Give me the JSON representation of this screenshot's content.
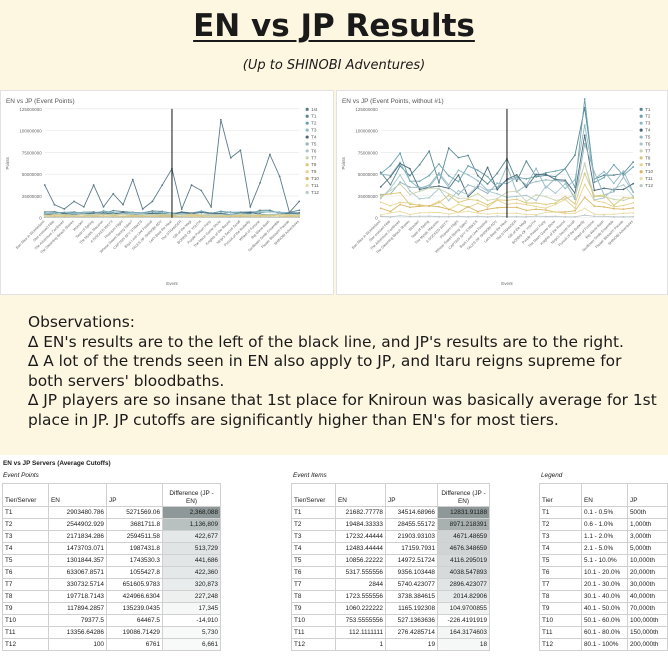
{
  "page": {
    "title": "EN vs JP Results",
    "subtitle": "(Up to SHINOBI Adventures)"
  },
  "charts": {
    "left": {
      "title": "EN vs JP (Event Points)",
      "ylabel": "Points",
      "xlabel": "Event",
      "yticks": [
        "125000000",
        "100000000",
        "75000000",
        "50000000",
        "25000000",
        "0"
      ],
      "legend": [
        "1st",
        "T1",
        "T2",
        "T3",
        "T4",
        "T5",
        "T6",
        "T7",
        "T8",
        "T9",
        "T10",
        "T11",
        "T12"
      ]
    },
    "right": {
      "title": "EN vs JP (Event Points, without #1)",
      "ylabel": "Points",
      "xlabel": "Event",
      "yticks": [
        "125000000",
        "100000000",
        "75000000",
        "50000000",
        "25000000",
        "0"
      ],
      "legend": [
        "T1",
        "T2",
        "T3",
        "T4",
        "T5",
        "T6",
        "T7",
        "T8",
        "T9",
        "T10",
        "T11",
        "T12"
      ]
    },
    "xlabels": [
      "Bon Alice in Wonderland",
      "Star-crossed Fête",
      "The Adventure Continues",
      "The Gleaming Beach Shores",
      "Wonder!",
      "Taste of Spring",
      "The Mystic Macaron",
      "A DOCKED WAY?!",
      "Phantom Flight",
      "Whose Sweet Spring Tales?",
      "CAPTAIN SPY STRIKES",
      "Boys Love Live Festival",
      "TALES OF SHINOBI ADV",
      "Let's Beat the Heat",
      "The STRANGER",
      "Gift of the Magi",
      "BONDS OF YOUTH",
      "Purple Poison Party",
      "The Moon Game Show",
      "Knights of the Round",
      "Ninja's Secret Scroll",
      "Pursuit of the Butterfly",
      "Wheel of Fortune",
      "Big Wave Bash",
      "Sunflower Smile Ensemble",
      "Flower Blossom Parade",
      "SHINOBI Adventures"
    ],
    "series_colors": [
      "#5a7a88",
      "#56868f",
      "#6ba2b0",
      "#8fbac4",
      "#4b6878",
      "#93b6c0",
      "#a8c6cc",
      "#c8d4b0",
      "#dac77a",
      "#e6d38f",
      "#d9b763",
      "#e9dca4",
      "#bcc8ca"
    ],
    "divider_color": "#111111"
  },
  "observations": {
    "heading": "Observations:",
    "lines": [
      "∆ EN's results are to the left of the black line, and JP's results are to the right.",
      "∆ A lot of the trends seen in EN also apply to JP, and Itaru reigns supreme for both servers' bloodbaths.",
      "∆ JP players are so insane that 1st place for Kniroun was basically average for 1st place in JP. JP cutoffs are significantly higher than EN's for most tiers."
    ]
  },
  "tables": {
    "header": "EN vs JP Servers (Average Cutoffs)",
    "event_points": {
      "subtitle": "Event Points",
      "columns": [
        "Tier/Server",
        "EN",
        "JP",
        "Difference (JP - EN)"
      ],
      "rows": [
        [
          "T1",
          "2903480.786",
          "5271569.06",
          "2,368,088"
        ],
        [
          "T2",
          "2544902.929",
          "3681711.8",
          "1,136,809"
        ],
        [
          "T3",
          "2171834.286",
          "2594511.58",
          "422,677"
        ],
        [
          "T4",
          "1473703.071",
          "1987431.8",
          "513,729"
        ],
        [
          "T5",
          "1301844.357",
          "1743530.3",
          "441,686"
        ],
        [
          "T6",
          "633067.8571",
          "1055427.8",
          "422,360"
        ],
        [
          "T7",
          "330732.5714",
          "651605.9783",
          "320,873"
        ],
        [
          "T8",
          "197718.7143",
          "424966.6304",
          "227,248"
        ],
        [
          "T9",
          "117894.2857",
          "135239.0435",
          "17,345"
        ],
        [
          "T10",
          "79377.5",
          "64467.5",
          "-14,910"
        ],
        [
          "T11",
          "13356.64286",
          "19086.71429",
          "5,730"
        ],
        [
          "T12",
          "100",
          "6761",
          "6,661"
        ]
      ],
      "diff_shades": [
        "#8e9898",
        "#b8c0c0",
        "#e4e8e8",
        "#e0e4e4",
        "#e2e6e6",
        "#e4e8e8",
        "#e8ecec",
        "#eef0f0",
        "#f6f8f8",
        "#ffffff",
        "#f8f9f9",
        "#f8f9f9"
      ]
    },
    "event_items": {
      "subtitle": "Event Items",
      "columns": [
        "Tier/Server",
        "EN",
        "JP",
        "Difference (JP - EN)"
      ],
      "rows": [
        [
          "T1",
          "21682.77778",
          "34514.68966",
          "12831.91188"
        ],
        [
          "T2",
          "19484.33333",
          "28455.55172",
          "8971.218391"
        ],
        [
          "T3",
          "17232.44444",
          "21903.93103",
          "4671.48659"
        ],
        [
          "T4",
          "12483.44444",
          "17159.7931",
          "4676.348659"
        ],
        [
          "T5",
          "10856.22222",
          "14972.51724",
          "4116.295019"
        ],
        [
          "T6",
          "5317.555556",
          "9356.103448",
          "4038.547893"
        ],
        [
          "T7",
          "2844",
          "5740.423077",
          "2896.423077"
        ],
        [
          "T8",
          "1723.555556",
          "3738.384615",
          "2014.82906"
        ],
        [
          "T9",
          "1060.222222",
          "1165.192308",
          "104.9700855"
        ],
        [
          "T10",
          "753.5555556",
          "527.1363636",
          "-226.4191919"
        ],
        [
          "T11",
          "112.1111111",
          "276.4285714",
          "164.3174603"
        ],
        [
          "T12",
          "1",
          "19",
          "18"
        ]
      ],
      "diff_shades": [
        "#8e9898",
        "#a8b0b0",
        "#d0d4d4",
        "#d0d4d4",
        "#d6dada",
        "#d6dada",
        "#e0e4e4",
        "#e6eaea",
        "#f2f4f4",
        "#ffffff",
        "#f4f6f6",
        "#f6f8f8"
      ]
    },
    "legend": {
      "subtitle": "Legend",
      "columns": [
        "Tier",
        "EN",
        "JP"
      ],
      "rows": [
        [
          "T1",
          "0.1 - 0.5%",
          "500th"
        ],
        [
          "T2",
          "0.6 - 1.0%",
          "1,000th"
        ],
        [
          "T3",
          "1.1 - 2.0%",
          "3,000th"
        ],
        [
          "T4",
          "2.1 - 5.0%",
          "5,000th"
        ],
        [
          "T5",
          "5.1 - 10.0%",
          "10,000th"
        ],
        [
          "T6",
          "10.1 - 20.0%",
          "20,000th"
        ],
        [
          "T7",
          "20.1 - 30.0%",
          "30,000th"
        ],
        [
          "T8",
          "30.1 - 40.0%",
          "40,000th"
        ],
        [
          "T9",
          "40.1 - 50.0%",
          "70,000th"
        ],
        [
          "T10",
          "50.1 - 60.0%",
          "100,000th"
        ],
        [
          "T11",
          "60.1 - 80.0%",
          "150,000th"
        ],
        [
          "T12",
          "80.1 - 100%",
          "200,000th"
        ]
      ]
    }
  }
}
